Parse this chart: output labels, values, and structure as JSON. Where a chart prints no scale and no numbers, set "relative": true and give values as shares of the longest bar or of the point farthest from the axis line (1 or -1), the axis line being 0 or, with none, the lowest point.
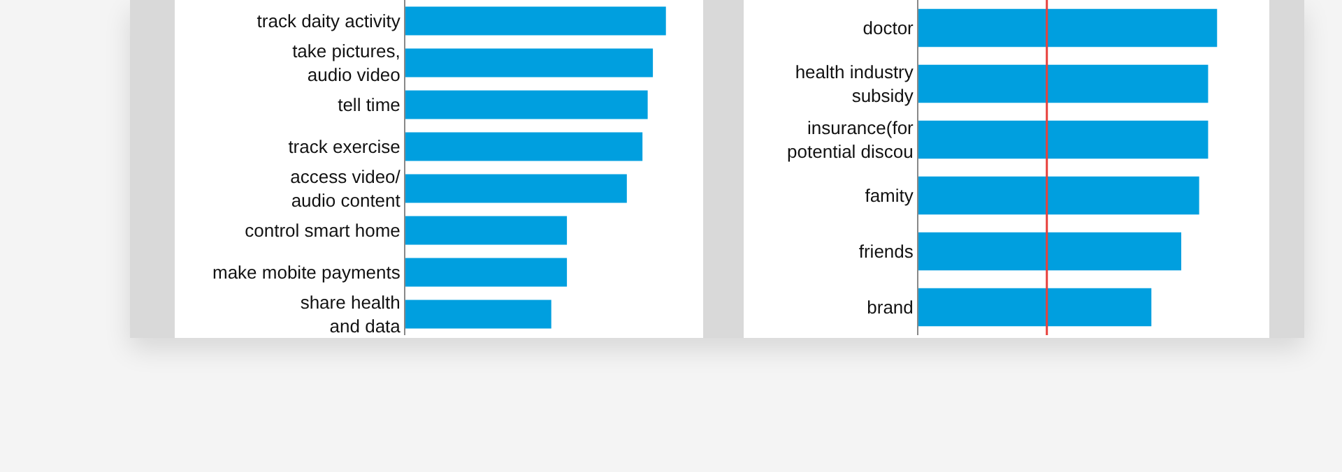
{
  "chart_data": [
    {
      "type": "bar",
      "orientation": "horizontal",
      "relative": true,
      "categories": [
        "track daity activity",
        "take pictures, audio video",
        "tell time",
        "track exercise",
        "access video/ audio content",
        "control smart home",
        "make mobite payments",
        "share health and data"
      ],
      "series": [
        {
          "color": "#009fdf",
          "values": [
            1,
            0.95,
            0.93,
            0.91,
            0.85,
            0.62,
            0.62,
            0.56
          ]
        }
      ]
    },
    {
      "type": "bar",
      "orientation": "horizontal",
      "relative": true,
      "categories": [
        "doctor",
        "health industry subsidy",
        "insurance(for potential discou",
        "famity",
        "friends",
        "brand"
      ],
      "series": [
        {
          "color": "#009fdf",
          "values": [
            1,
            0.97,
            0.97,
            0.94,
            0.88,
            0.78
          ]
        }
      ],
      "ref_lines": [
        {
          "axis": "x",
          "value": 0.43,
          "color": "#e8413c"
        }
      ]
    }
  ]
}
